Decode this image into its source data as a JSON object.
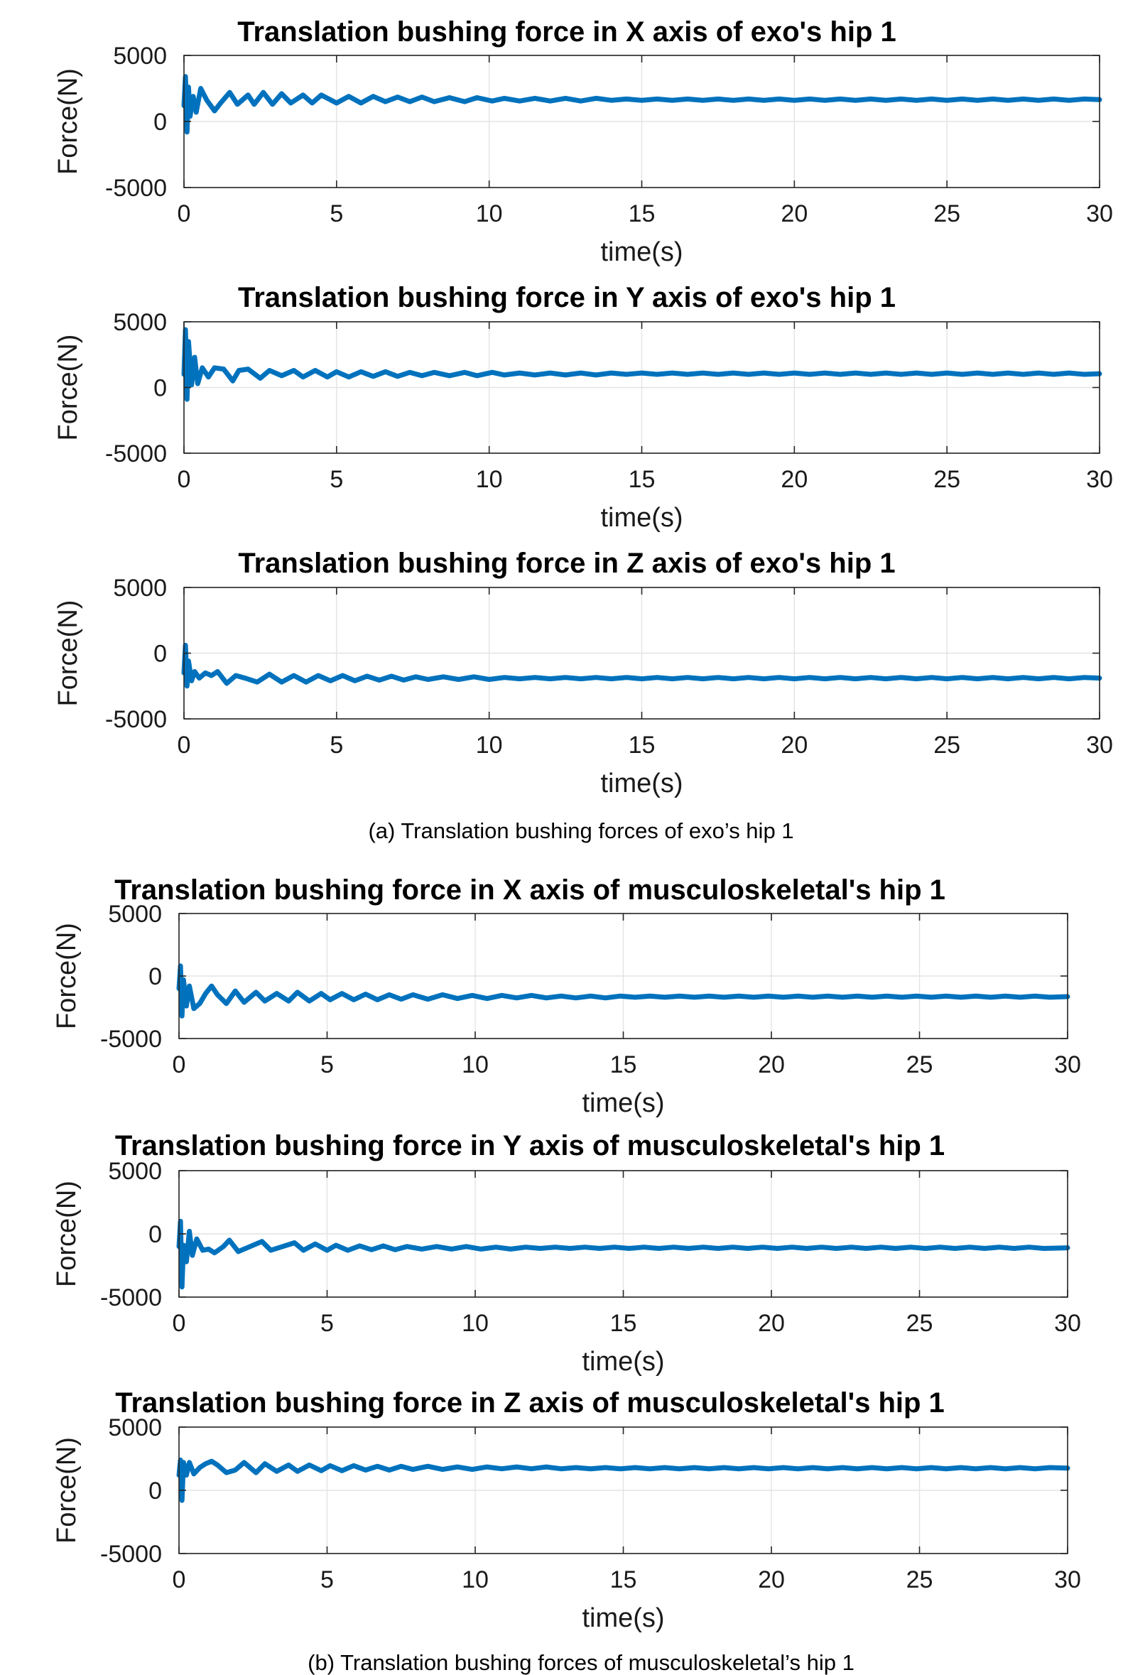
{
  "captions": {
    "a": "(a)  Translation bushing forces of exo’s hip 1",
    "b": "(b)  Translation bushing forces of musculoskeletal’s hip 1"
  },
  "series_color": "#0072bd",
  "chart_data": [
    {
      "type": "line",
      "title": "Translation bushing force in X axis of exo's hip 1",
      "xlabel": "time(s)",
      "ylabel": "Force(N)",
      "xlim": [
        0,
        30
      ],
      "ylim": [
        -5000,
        5000
      ],
      "xticks": [
        "0",
        "5",
        "10",
        "15",
        "20",
        "25",
        "30"
      ],
      "yticks": [
        "5000",
        "0",
        "-5000"
      ],
      "grid": true,
      "series": [
        {
          "x": [
            0,
            0.05,
            0.1,
            0.15,
            0.2,
            0.3,
            0.4,
            0.55,
            0.75,
            1.0,
            1.2,
            1.5,
            1.75,
            2.1,
            2.3,
            2.6,
            2.9,
            3.2,
            3.5,
            3.9,
            4.2,
            4.5,
            5.0,
            5.4,
            5.8,
            6.2,
            6.6,
            7.0,
            7.4,
            7.8,
            8.2,
            8.7,
            9.2,
            9.6,
            10.1,
            10.5,
            11.0,
            11.5,
            12.0,
            12.5,
            13.0,
            13.5,
            14.0,
            14.5,
            15.0,
            15.5,
            16.0,
            16.5,
            17.0,
            17.5,
            18.0,
            18.5,
            19.0,
            19.5,
            20.0,
            20.5,
            21.0,
            21.5,
            22.0,
            22.5,
            23.0,
            23.5,
            24.0,
            24.5,
            25.0,
            25.5,
            26.0,
            26.5,
            27.0,
            27.5,
            28.0,
            28.5,
            29.0,
            29.5,
            30.0
          ],
          "y": [
            1200,
            3400,
            -800,
            2600,
            400,
            1900,
            700,
            2500,
            1600,
            800,
            1400,
            2200,
            1300,
            2000,
            1300,
            2200,
            1300,
            2100,
            1400,
            2000,
            1400,
            2000,
            1400,
            1900,
            1400,
            1900,
            1500,
            1850,
            1500,
            1850,
            1500,
            1800,
            1500,
            1800,
            1550,
            1750,
            1550,
            1750,
            1550,
            1750,
            1550,
            1750,
            1600,
            1700,
            1600,
            1700,
            1600,
            1700,
            1600,
            1700,
            1600,
            1700,
            1600,
            1700,
            1600,
            1700,
            1600,
            1700,
            1600,
            1700,
            1600,
            1700,
            1600,
            1700,
            1600,
            1700,
            1600,
            1700,
            1600,
            1700,
            1600,
            1700,
            1600,
            1700,
            1650
          ]
        }
      ]
    },
    {
      "type": "line",
      "title": "Translation bushing force in Y axis of exo's hip 1",
      "xlabel": "time(s)",
      "ylabel": "Force(N)",
      "xlim": [
        0,
        30
      ],
      "ylim": [
        -5000,
        5000
      ],
      "xticks": [
        "0",
        "5",
        "10",
        "15",
        "20",
        "25",
        "30"
      ],
      "yticks": [
        "5000",
        "0",
        "-5000"
      ],
      "grid": true,
      "series": [
        {
          "x": [
            0,
            0.05,
            0.1,
            0.15,
            0.25,
            0.35,
            0.45,
            0.6,
            0.8,
            1.0,
            1.3,
            1.6,
            1.8,
            2.1,
            2.5,
            2.8,
            3.2,
            3.6,
            3.9,
            4.3,
            4.7,
            5.0,
            5.4,
            5.8,
            6.2,
            6.6,
            7.0,
            7.4,
            7.8,
            8.2,
            8.7,
            9.2,
            9.6,
            10.1,
            10.5,
            11.0,
            11.5,
            12.0,
            12.5,
            13.0,
            13.5,
            14.0,
            14.5,
            15.0,
            15.5,
            16.0,
            16.5,
            17.0,
            17.5,
            18.0,
            18.5,
            19.0,
            19.5,
            20.0,
            20.5,
            21.0,
            21.5,
            22.0,
            22.5,
            23.0,
            23.5,
            24.0,
            24.5,
            25.0,
            25.5,
            26.0,
            26.5,
            27.0,
            27.5,
            28.0,
            28.5,
            29.0,
            29.5,
            30.0
          ],
          "y": [
            1000,
            4400,
            -900,
            3500,
            200,
            2300,
            300,
            1500,
            800,
            1500,
            1400,
            500,
            1300,
            1400,
            700,
            1300,
            900,
            1300,
            800,
            1300,
            800,
            1200,
            800,
            1200,
            850,
            1200,
            850,
            1150,
            900,
            1150,
            900,
            1150,
            900,
            1150,
            950,
            1100,
            950,
            1100,
            950,
            1100,
            950,
            1100,
            1000,
            1100,
            1000,
            1100,
            1000,
            1100,
            1000,
            1100,
            1000,
            1100,
            1000,
            1100,
            1000,
            1100,
            1000,
            1100,
            1000,
            1100,
            1000,
            1100,
            1000,
            1100,
            1000,
            1100,
            1000,
            1100,
            1000,
            1100,
            1000,
            1100,
            1000,
            1050
          ]
        }
      ]
    },
    {
      "type": "line",
      "title": "Translation bushing force in Z axis of exo's hip 1",
      "xlabel": "time(s)",
      "ylabel": "Force(N)",
      "xlim": [
        0,
        30
      ],
      "ylim": [
        -5000,
        5000
      ],
      "xticks": [
        "0",
        "5",
        "10",
        "15",
        "20",
        "25",
        "30"
      ],
      "yticks": [
        "5000",
        "0",
        "-5000"
      ],
      "grid": true,
      "series": [
        {
          "x": [
            0,
            0.05,
            0.1,
            0.15,
            0.25,
            0.35,
            0.5,
            0.7,
            0.9,
            1.1,
            1.4,
            1.7,
            2.0,
            2.4,
            2.8,
            3.2,
            3.6,
            4.0,
            4.4,
            4.8,
            5.2,
            5.6,
            6.0,
            6.4,
            6.8,
            7.2,
            7.6,
            8.0,
            8.5,
            9.0,
            9.5,
            10.0,
            10.5,
            11.0,
            11.5,
            12.0,
            12.5,
            13.0,
            13.5,
            14.0,
            14.5,
            15.0,
            15.5,
            16.0,
            16.5,
            17.0,
            17.5,
            18.0,
            18.5,
            19.0,
            19.5,
            20.0,
            20.5,
            21.0,
            21.5,
            22.0,
            22.5,
            23.0,
            23.5,
            24.0,
            24.5,
            25.0,
            25.5,
            26.0,
            26.5,
            27.0,
            27.5,
            28.0,
            28.5,
            29.0,
            29.5,
            30.0
          ],
          "y": [
            -1500,
            600,
            -2500,
            -600,
            -2100,
            -1400,
            -1900,
            -1500,
            -1700,
            -1400,
            -2300,
            -1700,
            -1900,
            -2200,
            -1600,
            -2200,
            -1700,
            -2200,
            -1700,
            -2100,
            -1700,
            -2100,
            -1750,
            -2050,
            -1750,
            -2050,
            -1800,
            -2000,
            -1800,
            -2000,
            -1800,
            -2000,
            -1850,
            -1950,
            -1850,
            -1950,
            -1850,
            -1950,
            -1850,
            -1950,
            -1850,
            -1950,
            -1850,
            -1950,
            -1850,
            -1950,
            -1850,
            -1950,
            -1850,
            -1950,
            -1850,
            -1950,
            -1850,
            -1950,
            -1850,
            -1950,
            -1850,
            -1950,
            -1850,
            -1950,
            -1850,
            -1950,
            -1850,
            -1950,
            -1850,
            -1950,
            -1850,
            -1950,
            -1850,
            -1950,
            -1850,
            -1900
          ]
        }
      ]
    },
    {
      "type": "line",
      "title": "Translation bushing force in X axis of musculoskeletal's hip 1",
      "xlabel": "time(s)",
      "ylabel": "Force(N)",
      "xlim": [
        0,
        30
      ],
      "ylim": [
        -5000,
        5000
      ],
      "xticks": [
        "0",
        "5",
        "10",
        "15",
        "20",
        "25",
        "30"
      ],
      "yticks": [
        "5000",
        "0",
        "-5000"
      ],
      "grid": true,
      "series": [
        {
          "x": [
            0,
            0.05,
            0.1,
            0.15,
            0.25,
            0.35,
            0.5,
            0.7,
            0.9,
            1.1,
            1.3,
            1.6,
            1.9,
            2.2,
            2.6,
            2.9,
            3.3,
            3.7,
            4.0,
            4.4,
            4.8,
            5.1,
            5.5,
            5.9,
            6.3,
            6.7,
            7.1,
            7.5,
            7.9,
            8.4,
            8.9,
            9.4,
            9.9,
            10.4,
            10.9,
            11.4,
            11.9,
            12.4,
            12.9,
            13.4,
            13.9,
            14.4,
            14.9,
            15.4,
            15.9,
            16.4,
            16.9,
            17.4,
            17.9,
            18.4,
            18.9,
            19.4,
            19.9,
            20.4,
            20.9,
            21.4,
            21.9,
            22.4,
            22.9,
            23.4,
            23.9,
            24.4,
            24.9,
            25.4,
            25.9,
            26.4,
            26.9,
            27.4,
            27.9,
            28.4,
            28.9,
            29.4,
            30.0
          ],
          "y": [
            -1000,
            800,
            -3200,
            -300,
            -2400,
            -800,
            -2600,
            -2200,
            -1400,
            -800,
            -1500,
            -2200,
            -1200,
            -2100,
            -1300,
            -2000,
            -1400,
            -2000,
            -1300,
            -2000,
            -1400,
            -1900,
            -1400,
            -1900,
            -1450,
            -1900,
            -1500,
            -1850,
            -1500,
            -1850,
            -1500,
            -1800,
            -1550,
            -1800,
            -1550,
            -1750,
            -1550,
            -1750,
            -1600,
            -1750,
            -1600,
            -1750,
            -1600,
            -1700,
            -1600,
            -1700,
            -1600,
            -1700,
            -1600,
            -1700,
            -1600,
            -1700,
            -1600,
            -1700,
            -1600,
            -1700,
            -1600,
            -1700,
            -1600,
            -1700,
            -1600,
            -1700,
            -1600,
            -1700,
            -1600,
            -1700,
            -1600,
            -1700,
            -1600,
            -1700,
            -1600,
            -1700,
            -1650
          ]
        }
      ]
    },
    {
      "type": "line",
      "title": "Translation bushing force in Y axis of musculoskeletal's hip 1",
      "xlabel": "time(s)",
      "ylabel": "Force(N)",
      "xlim": [
        0,
        30
      ],
      "ylim": [
        -5000,
        5000
      ],
      "xticks": [
        "0",
        "5",
        "10",
        "15",
        "20",
        "25",
        "30"
      ],
      "yticks": [
        "5000",
        "0",
        "-5000"
      ],
      "grid": true,
      "series": [
        {
          "x": [
            0,
            0.05,
            0.1,
            0.15,
            0.25,
            0.35,
            0.45,
            0.6,
            0.8,
            1.0,
            1.2,
            1.5,
            1.7,
            2.0,
            2.4,
            2.8,
            3.1,
            3.5,
            3.9,
            4.2,
            4.6,
            5.0,
            5.3,
            5.7,
            6.1,
            6.5,
            6.9,
            7.3,
            7.7,
            8.2,
            8.7,
            9.2,
            9.7,
            10.2,
            10.7,
            11.2,
            11.7,
            12.2,
            12.7,
            13.2,
            13.7,
            14.2,
            14.7,
            15.2,
            15.7,
            16.2,
            16.7,
            17.2,
            17.7,
            18.2,
            18.7,
            19.2,
            19.7,
            20.2,
            20.7,
            21.2,
            21.7,
            22.2,
            22.7,
            23.2,
            23.7,
            24.2,
            24.7,
            25.2,
            25.7,
            26.2,
            26.7,
            27.2,
            27.7,
            28.2,
            28.7,
            29.2,
            30.0
          ],
          "y": [
            -1000,
            1000,
            -4200,
            -900,
            -2200,
            200,
            -1700,
            -400,
            -1300,
            -1200,
            -1500,
            -1000,
            -500,
            -1400,
            -1000,
            -600,
            -1300,
            -1000,
            -700,
            -1300,
            -800,
            -1300,
            -900,
            -1300,
            -950,
            -1250,
            -950,
            -1250,
            -1000,
            -1200,
            -1000,
            -1200,
            -1000,
            -1200,
            -1050,
            -1200,
            -1050,
            -1150,
            -1050,
            -1150,
            -1050,
            -1150,
            -1050,
            -1150,
            -1050,
            -1150,
            -1050,
            -1150,
            -1050,
            -1150,
            -1050,
            -1150,
            -1050,
            -1150,
            -1050,
            -1150,
            -1050,
            -1150,
            -1050,
            -1150,
            -1050,
            -1150,
            -1050,
            -1150,
            -1050,
            -1150,
            -1050,
            -1150,
            -1050,
            -1150,
            -1050,
            -1150,
            -1100
          ]
        }
      ]
    },
    {
      "type": "line",
      "title": "Translation bushing force in Z axis of musculoskeletal's hip 1",
      "xlabel": "time(s)",
      "ylabel": "Force(N)",
      "xlim": [
        0,
        30
      ],
      "ylim": [
        -5000,
        5000
      ],
      "xticks": [
        "0",
        "5",
        "10",
        "15",
        "20",
        "25",
        "30"
      ],
      "yticks": [
        "5000",
        "0",
        "-5000"
      ],
      "grid": true,
      "series": [
        {
          "x": [
            0,
            0.05,
            0.1,
            0.15,
            0.25,
            0.35,
            0.5,
            0.7,
            0.9,
            1.1,
            1.3,
            1.6,
            1.9,
            2.2,
            2.6,
            2.9,
            3.3,
            3.7,
            4.0,
            4.4,
            4.8,
            5.1,
            5.5,
            5.9,
            6.3,
            6.7,
            7.1,
            7.5,
            7.9,
            8.4,
            8.9,
            9.4,
            9.9,
            10.4,
            10.9,
            11.4,
            11.9,
            12.4,
            12.9,
            13.4,
            13.9,
            14.4,
            14.9,
            15.4,
            15.9,
            16.4,
            16.9,
            17.4,
            17.9,
            18.4,
            18.9,
            19.4,
            19.9,
            20.4,
            20.9,
            21.4,
            21.9,
            22.4,
            22.9,
            23.4,
            23.9,
            24.4,
            24.9,
            25.4,
            25.9,
            26.4,
            26.9,
            27.4,
            27.9,
            28.4,
            28.9,
            29.4,
            30.0
          ],
          "y": [
            1200,
            2400,
            -800,
            2200,
            1200,
            2200,
            1300,
            1800,
            2100,
            2300,
            2000,
            1400,
            1600,
            2200,
            1400,
            2100,
            1500,
            2000,
            1500,
            2000,
            1550,
            1950,
            1550,
            1950,
            1600,
            1900,
            1600,
            1900,
            1650,
            1900,
            1650,
            1850,
            1650,
            1850,
            1700,
            1850,
            1700,
            1850,
            1700,
            1800,
            1700,
            1800,
            1700,
            1800,
            1700,
            1800,
            1700,
            1800,
            1700,
            1800,
            1700,
            1800,
            1700,
            1800,
            1700,
            1800,
            1700,
            1800,
            1700,
            1800,
            1700,
            1800,
            1700,
            1800,
            1700,
            1800,
            1700,
            1800,
            1700,
            1800,
            1700,
            1800,
            1750
          ]
        }
      ]
    }
  ]
}
